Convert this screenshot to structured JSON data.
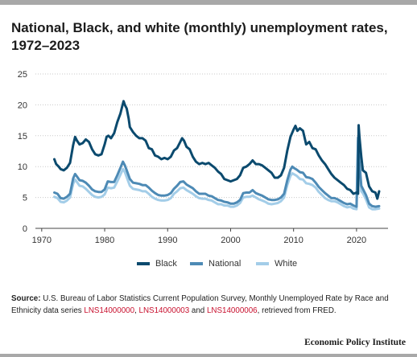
{
  "title": "National, Black, and white (monthly) unemployment rates, 1972–2023",
  "source": {
    "label": "Source:",
    "text_1": " U.S. Bureau of Labor Statistics Current Population Survey, Monthly Unemployed Rate by Race and Ethnicity data series ",
    "series_id_1": "LNS14000000",
    "sep_1": ", ",
    "series_id_2": "LNS14000003",
    "sep_2": " and ",
    "series_id_3": "LNS14000006",
    "text_2": ", retrieved from FRED."
  },
  "footer": "Economic Policy Institute",
  "colors": {
    "black": "#0b4a6e",
    "national": "#4d8ab5",
    "white": "#a3cde8",
    "link": "#c8102e"
  },
  "chart_data": {
    "type": "line",
    "title": "National, Black, and white (monthly) unemployment rates, 1972–2023",
    "xlabel": "",
    "ylabel": "",
    "xlim": [
      1969,
      2025
    ],
    "ylim": [
      0,
      25
    ],
    "x_ticks": [
      1970,
      1980,
      1990,
      2000,
      2010,
      2020
    ],
    "y_ticks": [
      0,
      5,
      10,
      15,
      20,
      25
    ],
    "grid": "horizontal dotted",
    "legend_position": "bottom",
    "series": [
      {
        "name": "Black",
        "color": "#0b4a6e",
        "x": [
          1972.0,
          1972.3,
          1972.7,
          1973.0,
          1973.5,
          1974.0,
          1974.5,
          1975.0,
          1975.3,
          1975.6,
          1976.0,
          1976.5,
          1977.0,
          1977.5,
          1978.0,
          1978.5,
          1979.0,
          1979.5,
          1980.0,
          1980.3,
          1980.6,
          1981.0,
          1981.5,
          1982.0,
          1982.5,
          1982.8,
          1983.0,
          1983.2,
          1983.5,
          1983.8,
          1984.0,
          1984.5,
          1985.0,
          1985.5,
          1986.0,
          1986.5,
          1987.0,
          1987.5,
          1988.0,
          1988.5,
          1989.0,
          1989.5,
          1990.0,
          1990.5,
          1991.0,
          1991.5,
          1992.0,
          1992.3,
          1992.6,
          1993.0,
          1993.5,
          1994.0,
          1994.5,
          1995.0,
          1995.5,
          1996.0,
          1996.5,
          1997.0,
          1997.5,
          1998.0,
          1998.5,
          1999.0,
          1999.5,
          2000.0,
          2000.5,
          2001.0,
          2001.5,
          2002.0,
          2002.5,
          2003.0,
          2003.5,
          2004.0,
          2004.5,
          2005.0,
          2005.5,
          2006.0,
          2006.5,
          2007.0,
          2007.5,
          2008.0,
          2008.5,
          2009.0,
          2009.5,
          2010.0,
          2010.3,
          2010.6,
          2011.0,
          2011.5,
          2012.0,
          2012.5,
          2013.0,
          2013.5,
          2014.0,
          2014.5,
          2015.0,
          2015.5,
          2016.0,
          2016.5,
          2017.0,
          2017.5,
          2018.0,
          2018.5,
          2019.0,
          2019.5,
          2020.0,
          2020.25,
          2020.33,
          2020.42,
          2020.5,
          2020.75,
          2021.0,
          2021.5,
          2022.0,
          2022.5,
          2023.0,
          2023.3,
          2023.6
        ],
        "values": [
          11.2,
          10.4,
          10.0,
          9.6,
          9.4,
          9.8,
          10.6,
          13.5,
          14.8,
          14.2,
          13.6,
          13.8,
          14.4,
          14.0,
          12.8,
          12.0,
          11.8,
          12.0,
          13.6,
          14.8,
          15.0,
          14.6,
          15.4,
          17.2,
          18.6,
          19.8,
          20.6,
          20.0,
          19.4,
          17.8,
          16.4,
          15.6,
          15.0,
          14.6,
          14.6,
          14.2,
          13.0,
          12.8,
          11.8,
          11.6,
          11.2,
          11.4,
          11.2,
          11.6,
          12.6,
          13.0,
          14.0,
          14.6,
          14.2,
          13.2,
          12.8,
          11.6,
          10.8,
          10.4,
          10.6,
          10.4,
          10.6,
          10.2,
          9.8,
          9.2,
          8.8,
          8.0,
          7.8,
          7.6,
          7.8,
          8.0,
          8.6,
          9.8,
          10.0,
          10.4,
          11.0,
          10.4,
          10.4,
          10.2,
          9.8,
          9.4,
          9.0,
          8.2,
          8.2,
          8.6,
          9.8,
          12.6,
          14.8,
          16.0,
          16.6,
          15.8,
          16.2,
          15.8,
          13.6,
          14.0,
          13.0,
          12.8,
          11.8,
          11.0,
          10.4,
          9.6,
          8.8,
          8.2,
          7.8,
          7.4,
          7.0,
          6.4,
          6.2,
          5.6,
          5.8,
          5.6,
          16.7,
          15.4,
          14.4,
          11.6,
          9.4,
          9.0,
          6.8,
          6.0,
          5.8,
          4.8,
          6.0
        ]
      },
      {
        "name": "National",
        "color": "#4d8ab5",
        "x": [
          1972.0,
          1972.5,
          1973.0,
          1973.5,
          1974.0,
          1974.5,
          1975.0,
          1975.3,
          1975.6,
          1976.0,
          1976.5,
          1977.0,
          1977.5,
          1978.0,
          1978.5,
          1979.0,
          1979.5,
          1980.0,
          1980.5,
          1981.0,
          1981.5,
          1982.0,
          1982.5,
          1982.9,
          1983.2,
          1983.5,
          1984.0,
          1984.5,
          1985.0,
          1985.5,
          1986.0,
          1986.5,
          1987.0,
          1987.5,
          1988.0,
          1988.5,
          1989.0,
          1989.5,
          1990.0,
          1990.5,
          1991.0,
          1991.5,
          1992.0,
          1992.5,
          1993.0,
          1993.5,
          1994.0,
          1994.5,
          1995.0,
          1995.5,
          1996.0,
          1996.5,
          1997.0,
          1997.5,
          1998.0,
          1998.5,
          1999.0,
          1999.5,
          2000.0,
          2000.5,
          2001.0,
          2001.5,
          2002.0,
          2002.5,
          2003.0,
          2003.5,
          2004.0,
          2004.5,
          2005.0,
          2005.5,
          2006.0,
          2006.5,
          2007.0,
          2007.5,
          2008.0,
          2008.5,
          2009.0,
          2009.5,
          2009.8,
          2010.0,
          2010.5,
          2011.0,
          2011.5,
          2012.0,
          2012.5,
          2013.0,
          2013.5,
          2014.0,
          2014.5,
          2015.0,
          2015.5,
          2016.0,
          2016.5,
          2017.0,
          2017.5,
          2018.0,
          2018.5,
          2019.0,
          2019.5,
          2020.0,
          2020.25,
          2020.33,
          2020.42,
          2020.5,
          2020.75,
          2021.0,
          2021.5,
          2022.0,
          2022.5,
          2023.0,
          2023.6
        ],
        "values": [
          5.8,
          5.6,
          4.9,
          4.8,
          5.1,
          5.6,
          8.1,
          8.8,
          8.4,
          7.8,
          7.7,
          7.4,
          6.9,
          6.3,
          6.0,
          5.9,
          5.9,
          6.3,
          7.6,
          7.5,
          7.5,
          8.6,
          9.8,
          10.8,
          10.2,
          9.4,
          8.0,
          7.4,
          7.3,
          7.2,
          7.0,
          7.0,
          6.6,
          6.1,
          5.7,
          5.4,
          5.3,
          5.3,
          5.4,
          5.7,
          6.4,
          6.9,
          7.5,
          7.6,
          7.1,
          6.8,
          6.5,
          6.0,
          5.6,
          5.6,
          5.6,
          5.3,
          5.2,
          4.9,
          4.6,
          4.5,
          4.3,
          4.2,
          4.0,
          4.0,
          4.2,
          4.6,
          5.7,
          5.8,
          5.8,
          6.2,
          5.7,
          5.5,
          5.3,
          5.0,
          4.7,
          4.6,
          4.6,
          4.7,
          5.0,
          5.6,
          7.8,
          9.5,
          10.0,
          9.8,
          9.5,
          9.1,
          9.0,
          8.3,
          8.2,
          8.0,
          7.4,
          6.7,
          6.2,
          5.7,
          5.3,
          4.9,
          4.9,
          4.7,
          4.4,
          4.1,
          3.9,
          4.0,
          3.7,
          3.5,
          14.7,
          13.3,
          11.1,
          10.2,
          6.9,
          6.4,
          5.4,
          4.0,
          3.6,
          3.5,
          3.6
        ]
      },
      {
        "name": "White",
        "color": "#a3cde8",
        "x": [
          1972.0,
          1972.5,
          1973.0,
          1973.5,
          1974.0,
          1974.5,
          1975.0,
          1975.3,
          1975.6,
          1976.0,
          1976.5,
          1977.0,
          1977.5,
          1978.0,
          1978.5,
          1979.0,
          1979.5,
          1980.0,
          1980.5,
          1981.0,
          1981.5,
          1982.0,
          1982.5,
          1982.9,
          1983.2,
          1983.5,
          1984.0,
          1984.5,
          1985.0,
          1985.5,
          1986.0,
          1986.5,
          1987.0,
          1987.5,
          1988.0,
          1988.5,
          1989.0,
          1989.5,
          1990.0,
          1990.5,
          1991.0,
          1991.5,
          1992.0,
          1992.5,
          1993.0,
          1993.5,
          1994.0,
          1994.5,
          1995.0,
          1995.5,
          1996.0,
          1996.5,
          1997.0,
          1997.5,
          1998.0,
          1998.5,
          1999.0,
          1999.5,
          2000.0,
          2000.5,
          2001.0,
          2001.5,
          2002.0,
          2002.5,
          2003.0,
          2003.5,
          2004.0,
          2004.5,
          2005.0,
          2005.5,
          2006.0,
          2006.5,
          2007.0,
          2007.5,
          2008.0,
          2008.5,
          2009.0,
          2009.5,
          2009.8,
          2010.0,
          2010.5,
          2011.0,
          2011.5,
          2012.0,
          2012.5,
          2013.0,
          2013.5,
          2014.0,
          2014.5,
          2015.0,
          2015.5,
          2016.0,
          2016.5,
          2017.0,
          2017.5,
          2018.0,
          2018.5,
          2019.0,
          2019.5,
          2020.0,
          2020.25,
          2020.33,
          2020.42,
          2020.5,
          2020.75,
          2021.0,
          2021.5,
          2022.0,
          2022.5,
          2023.0,
          2023.6
        ],
        "values": [
          5.1,
          4.9,
          4.3,
          4.2,
          4.5,
          5.0,
          7.2,
          7.9,
          7.5,
          6.9,
          6.8,
          6.4,
          5.9,
          5.4,
          5.1,
          5.0,
          5.1,
          5.5,
          6.6,
          6.5,
          6.6,
          7.6,
          8.7,
          9.6,
          9.1,
          8.3,
          6.9,
          6.4,
          6.3,
          6.2,
          6.0,
          6.0,
          5.6,
          5.1,
          4.8,
          4.6,
          4.5,
          4.5,
          4.6,
          4.9,
          5.6,
          6.0,
          6.5,
          6.6,
          6.2,
          5.9,
          5.6,
          5.2,
          4.9,
          4.8,
          4.8,
          4.6,
          4.5,
          4.2,
          3.9,
          3.9,
          3.7,
          3.7,
          3.5,
          3.5,
          3.7,
          4.1,
          5.0,
          5.1,
          5.1,
          5.3,
          5.0,
          4.7,
          4.5,
          4.3,
          4.0,
          3.9,
          4.0,
          4.1,
          4.4,
          5.0,
          7.0,
          8.5,
          8.9,
          8.8,
          8.5,
          8.0,
          7.9,
          7.3,
          7.2,
          7.0,
          6.6,
          5.9,
          5.4,
          4.9,
          4.6,
          4.4,
          4.4,
          4.2,
          3.9,
          3.6,
          3.4,
          3.5,
          3.2,
          3.1,
          14.2,
          12.8,
          10.1,
          9.2,
          6.0,
          5.7,
          4.7,
          3.4,
          3.1,
          3.1,
          3.2
        ]
      }
    ]
  }
}
